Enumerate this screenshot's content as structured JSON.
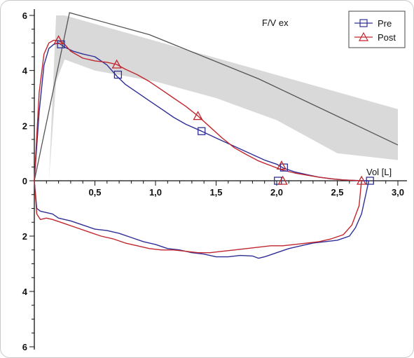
{
  "chart_data": {
    "type": "line",
    "title": "F/V ex",
    "xlabel": "Vol [L]",
    "ylabel": "",
    "xlim": [
      0,
      3.0
    ],
    "ylim": [
      -6,
      6
    ],
    "x_ticks": [
      0.5,
      1.0,
      1.5,
      2.0,
      2.5,
      3.0
    ],
    "x_tick_labels": [
      "0,5",
      "1,0",
      "1,5",
      "2,0",
      "2,5",
      "3,0"
    ],
    "y_ticks": [
      6,
      4,
      2,
      0,
      -2,
      -4,
      -6
    ],
    "y_tick_labels": [
      "6",
      "4",
      "2",
      "0",
      "2",
      "4",
      "6"
    ],
    "legend_position": "top-right",
    "grid": false,
    "colors": {
      "pre": "#2e2e96",
      "post": "#c0262d",
      "predicted": "#555555",
      "band": "#d9d9d9"
    },
    "predicted_band": {
      "upper": [
        [
          0.18,
          6.0
        ],
        [
          0.25,
          6.0
        ],
        [
          3.0,
          2.6
        ]
      ],
      "lower": [
        [
          3.0,
          0.75
        ],
        [
          2.5,
          1.0
        ],
        [
          2.0,
          2.2
        ],
        [
          1.5,
          3.0
        ],
        [
          1.0,
          3.6
        ],
        [
          0.5,
          4.0
        ],
        [
          0.25,
          4.4
        ],
        [
          0.18,
          3.6
        ],
        [
          0.12,
          0.0
        ]
      ]
    },
    "predicted_line": {
      "x": [
        0.0,
        0.29,
        0.95,
        1.85,
        3.0
      ],
      "y": [
        0.0,
        6.1,
        5.3,
        3.7,
        1.3
      ]
    },
    "series": [
      {
        "name": "Pre",
        "marker": "square",
        "x": [
          0.0,
          0.04,
          0.08,
          0.12,
          0.16,
          0.2,
          0.25,
          0.32,
          0.4,
          0.5,
          0.6,
          0.68,
          0.75,
          0.85,
          0.95,
          1.05,
          1.15,
          1.25,
          1.38,
          1.5,
          1.6,
          1.7,
          1.8,
          1.9,
          2.0,
          2.06,
          2.15,
          2.25,
          2.35,
          2.45,
          2.55,
          2.65,
          2.72,
          2.76,
          2.7,
          2.65,
          2.6,
          2.5,
          2.4,
          2.3,
          2.2,
          2.1,
          2.0,
          1.9,
          1.85,
          1.8,
          1.7,
          1.6,
          1.5,
          1.4,
          1.3,
          1.2,
          1.1,
          1.0,
          0.9,
          0.8,
          0.7,
          0.6,
          0.5,
          0.4,
          0.3,
          0.2,
          0.15,
          0.1,
          0.05,
          0.02,
          0.0
        ],
        "y": [
          0.0,
          2.5,
          4.2,
          4.8,
          4.95,
          5.0,
          4.85,
          4.7,
          4.6,
          4.5,
          4.2,
          3.8,
          3.5,
          3.2,
          2.9,
          2.6,
          2.3,
          2.05,
          1.8,
          1.55,
          1.35,
          1.15,
          0.95,
          0.75,
          0.6,
          0.45,
          0.32,
          0.22,
          0.13,
          0.07,
          0.03,
          0.01,
          0.0,
          0.0,
          -1.2,
          -1.7,
          -2.0,
          -2.15,
          -2.2,
          -2.25,
          -2.35,
          -2.45,
          -2.6,
          -2.75,
          -2.8,
          -2.72,
          -2.7,
          -2.75,
          -2.75,
          -2.65,
          -2.6,
          -2.5,
          -2.45,
          -2.3,
          -2.2,
          -2.05,
          -1.9,
          -1.8,
          -1.75,
          -1.6,
          -1.45,
          -1.35,
          -1.2,
          -1.15,
          -1.1,
          -1.0,
          0.0
        ]
      },
      {
        "name": "Post",
        "marker": "triangle",
        "x": [
          0.0,
          0.04,
          0.08,
          0.12,
          0.16,
          0.2,
          0.25,
          0.3,
          0.4,
          0.5,
          0.6,
          0.68,
          0.75,
          0.85,
          0.95,
          1.05,
          1.15,
          1.25,
          1.35,
          1.45,
          1.55,
          1.65,
          1.75,
          1.85,
          1.95,
          2.04,
          2.15,
          2.25,
          2.35,
          2.45,
          2.55,
          2.65,
          2.7,
          2.68,
          2.62,
          2.55,
          2.45,
          2.35,
          2.25,
          2.15,
          2.05,
          1.95,
          1.85,
          1.75,
          1.65,
          1.55,
          1.45,
          1.35,
          1.25,
          1.15,
          1.05,
          0.95,
          0.85,
          0.75,
          0.65,
          0.55,
          0.45,
          0.35,
          0.25,
          0.15,
          0.1,
          0.05,
          0.02,
          0.0
        ],
        "y": [
          0.0,
          3.2,
          4.6,
          5.0,
          5.1,
          5.08,
          4.95,
          4.7,
          4.45,
          4.35,
          4.3,
          4.22,
          4.05,
          3.85,
          3.6,
          3.3,
          3.0,
          2.7,
          2.35,
          1.95,
          1.55,
          1.2,
          0.95,
          0.72,
          0.55,
          0.4,
          0.28,
          0.2,
          0.13,
          0.07,
          0.03,
          0.01,
          0.0,
          -0.9,
          -1.6,
          -1.95,
          -2.1,
          -2.2,
          -2.25,
          -2.3,
          -2.35,
          -2.35,
          -2.4,
          -2.45,
          -2.5,
          -2.55,
          -2.6,
          -2.6,
          -2.55,
          -2.5,
          -2.5,
          -2.45,
          -2.35,
          -2.25,
          -2.1,
          -2.0,
          -1.85,
          -1.7,
          -1.55,
          -1.4,
          -1.35,
          -1.4,
          -1.2,
          0.0
        ]
      }
    ],
    "markers": [
      {
        "series": "Pre",
        "x": 0.22,
        "y": 4.95
      },
      {
        "series": "Pre",
        "x": 0.69,
        "y": 3.85
      },
      {
        "series": "Pre",
        "x": 1.38,
        "y": 1.8
      },
      {
        "series": "Pre",
        "x": 2.06,
        "y": 0.48
      },
      {
        "series": "Pre",
        "x": 2.01,
        "y": 0.0
      },
      {
        "series": "Pre",
        "x": 2.77,
        "y": 0.0
      },
      {
        "series": "Post",
        "x": 0.2,
        "y": 5.1
      },
      {
        "series": "Post",
        "x": 0.68,
        "y": 4.22
      },
      {
        "series": "Post",
        "x": 1.35,
        "y": 2.35
      },
      {
        "series": "Post",
        "x": 2.04,
        "y": 0.55
      },
      {
        "series": "Post",
        "x": 2.05,
        "y": 0.0
      },
      {
        "series": "Post",
        "x": 2.7,
        "y": 0.0
      }
    ]
  }
}
